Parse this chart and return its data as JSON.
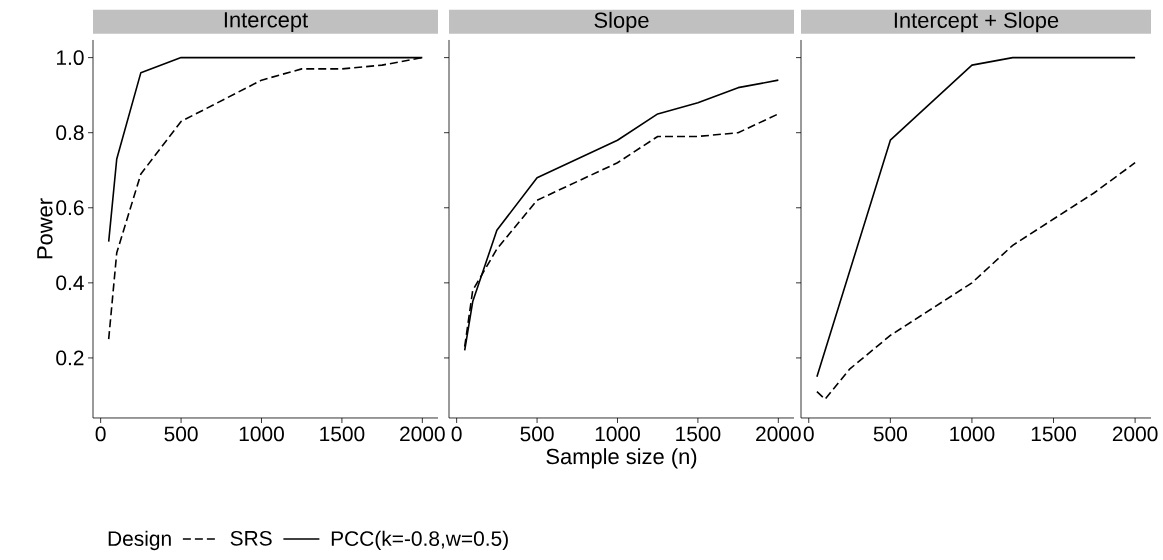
{
  "chart_data": [
    {
      "type": "line",
      "title": "Intercept",
      "ylabel": "Power",
      "xlim": [
        -47.5,
        2097.5
      ],
      "ylim": [
        0.04,
        1.047
      ],
      "xticks": [
        0,
        500,
        1000,
        1500,
        2000
      ],
      "yticks": [
        0.2,
        0.4,
        0.6,
        0.8,
        {
          "value": 1,
          "label": "1.0"
        }
      ],
      "series": [
        {
          "color": "#000000",
          "line_style": "dashed",
          "x": [
            50,
            100,
            250,
            500,
            1000,
            1250,
            1500,
            1750,
            2000
          ],
          "values": [
            0.25,
            0.48,
            0.69,
            0.83,
            0.94,
            0.97,
            0.97,
            0.98,
            1.0
          ]
        },
        {
          "color": "#000000",
          "line_style": "solid",
          "x": [
            50,
            100,
            250,
            500,
            1000,
            1500,
            2000
          ],
          "values": [
            0.51,
            0.73,
            0.96,
            1.0,
            1.0,
            1.0,
            1.0
          ]
        }
      ]
    },
    {
      "type": "line",
      "title": "Slope",
      "xlabel": "Sample size (n)",
      "legend_title": "Design",
      "legend": "bottom",
      "tick_labels": "x",
      "xlim": [
        -47.5,
        2097.5
      ],
      "ylim": [
        0.04,
        1.047
      ],
      "xticks": [
        0,
        500,
        1000,
        1500,
        2000
      ],
      "yticks": [
        0.2,
        0.4,
        0.6,
        0.8,
        1
      ],
      "series": [
        {
          "name": "SRS",
          "color": "#000000",
          "line_style": "dashed",
          "x": [
            50,
            100,
            250,
            500,
            1000,
            1250,
            1500,
            1750,
            2000
          ],
          "values": [
            0.23,
            0.38,
            0.49,
            0.62,
            0.72,
            0.79,
            0.79,
            0.8,
            0.85
          ]
        },
        {
          "name": "PCC(k=-0.8,w=0.5)",
          "color": "#000000",
          "line_style": "solid",
          "x": [
            50,
            100,
            250,
            500,
            1000,
            1250,
            1500,
            1750,
            2000
          ],
          "values": [
            0.22,
            0.35,
            0.54,
            0.68,
            0.78,
            0.85,
            0.88,
            0.92,
            0.94
          ]
        }
      ]
    },
    {
      "type": "line",
      "title": "Intercept + Slope",
      "tick_labels": "x",
      "xlim": [
        -47.5,
        2097.5
      ],
      "ylim": [
        0.04,
        1.047
      ],
      "xticks": [
        0,
        500,
        1000,
        1500,
        2000
      ],
      "yticks": [
        0.2,
        0.4,
        0.6,
        0.8,
        1
      ],
      "series": [
        {
          "color": "#000000",
          "line_style": "dashed",
          "x": [
            50,
            100,
            250,
            500,
            1000,
            1250,
            1500,
            1750,
            2000
          ],
          "values": [
            0.11,
            0.09,
            0.17,
            0.26,
            0.4,
            0.5,
            0.57,
            0.64,
            0.72
          ]
        },
        {
          "color": "#000000",
          "line_style": "solid",
          "x": [
            50,
            500,
            1000,
            1250,
            1500,
            2000
          ],
          "values": [
            0.15,
            0.78,
            0.98,
            1.0,
            1.0,
            1.0
          ]
        }
      ]
    }
  ]
}
